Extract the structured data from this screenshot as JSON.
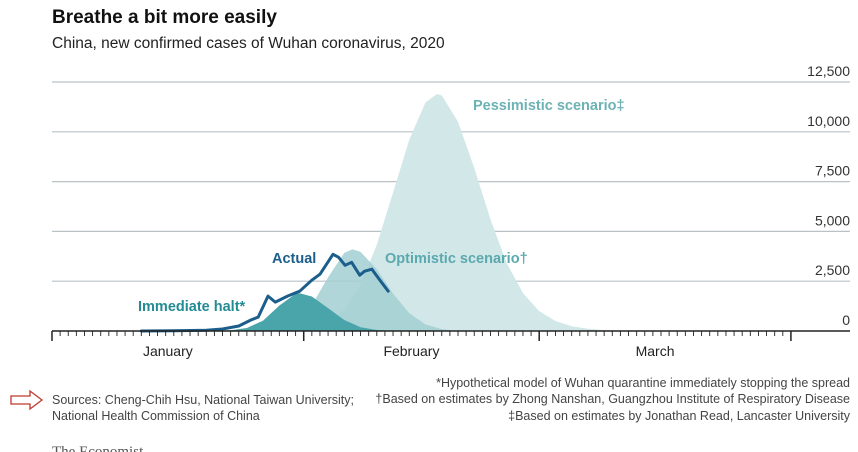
{
  "chart_data": {
    "type": "area",
    "title": "Breathe a bit more easily",
    "subtitle": "China, new confirmed cases of Wuhan coronavirus, 2020",
    "xlabel": "",
    "ylabel": "",
    "x_units": "days since 1 January 2020",
    "xlim": [
      0,
      91
    ],
    "ylim": [
      0,
      12500
    ],
    "yticks": [
      0,
      2500,
      5000,
      7500,
      10000,
      12500
    ],
    "ytick_labels": [
      "0",
      "2,500",
      "5,000",
      "7,500",
      "10,000",
      "12,500"
    ],
    "months": [
      {
        "label": "January",
        "start": 0,
        "end": 31
      },
      {
        "label": "February",
        "start": 31,
        "end": 60
      },
      {
        "label": "March",
        "start": 60,
        "end": 91
      }
    ],
    "grid": true,
    "series": [
      {
        "name": "Pessimistic scenario",
        "label": "Pessimistic scenario‡",
        "kind": "area",
        "color": "#d2e7e8",
        "points": [
          [
            26,
            0
          ],
          [
            30,
            44
          ],
          [
            32,
            149
          ],
          [
            34,
            431
          ],
          [
            36,
            1080
          ],
          [
            38,
            2325
          ],
          [
            40,
            4330
          ],
          [
            42,
            6940
          ],
          [
            44,
            9610
          ],
          [
            46,
            11470
          ],
          [
            47.4,
            11900
          ],
          [
            48,
            11820
          ],
          [
            50,
            10500
          ],
          [
            52,
            8200
          ],
          [
            54,
            5600
          ],
          [
            56,
            3400
          ],
          [
            58,
            1900
          ],
          [
            60,
            1000
          ],
          [
            62,
            500
          ],
          [
            64,
            240
          ],
          [
            66,
            110
          ],
          [
            68,
            50
          ],
          [
            72,
            10
          ],
          [
            76,
            0
          ]
        ]
      },
      {
        "name": "Optimistic scenario",
        "label": "Optimistic scenario†",
        "kind": "area",
        "color": "#a3cfd2",
        "points": [
          [
            26,
            0
          ],
          [
            28,
            100
          ],
          [
            30,
            430
          ],
          [
            32,
            1290
          ],
          [
            34,
            2700
          ],
          [
            36,
            3920
          ],
          [
            37,
            4100
          ],
          [
            38,
            3970
          ],
          [
            40,
            3100
          ],
          [
            42,
            1880
          ],
          [
            44,
            890
          ],
          [
            46,
            330
          ],
          [
            48,
            94
          ],
          [
            50,
            0
          ]
        ]
      },
      {
        "name": "Immediate halt",
        "label": "Immediate halt*",
        "kind": "area",
        "color": "#4aa5ab",
        "points": [
          [
            11,
            0
          ],
          [
            16,
            5
          ],
          [
            20,
            15
          ],
          [
            22,
            40
          ],
          [
            24,
            150
          ],
          [
            26,
            520
          ],
          [
            28,
            1280
          ],
          [
            30,
            1870
          ],
          [
            30.5,
            1900
          ],
          [
            32,
            1730
          ],
          [
            34,
            1150
          ],
          [
            36,
            550
          ],
          [
            38,
            190
          ],
          [
            40,
            48
          ],
          [
            42,
            0
          ]
        ]
      },
      {
        "name": "Actual",
        "label": "Actual",
        "kind": "line",
        "color": "#1b5e8c",
        "points": [
          [
            11,
            0
          ],
          [
            15,
            10
          ],
          [
            19,
            40
          ],
          [
            21,
            100
          ],
          [
            23,
            250
          ],
          [
            24.5,
            550
          ],
          [
            25.4,
            700
          ],
          [
            26.6,
            1750
          ],
          [
            27.5,
            1450
          ],
          [
            29,
            1750
          ],
          [
            30.5,
            2000
          ],
          [
            32,
            2550
          ],
          [
            33,
            2850
          ],
          [
            34.6,
            3850
          ],
          [
            35.3,
            3700
          ],
          [
            36.1,
            3300
          ],
          [
            36.9,
            3450
          ],
          [
            37.9,
            2800
          ],
          [
            38.5,
            3000
          ],
          [
            39.4,
            3100
          ],
          [
            40.3,
            2600
          ],
          [
            41.4,
            2000
          ]
        ]
      }
    ],
    "label_colors": {
      "Pessimistic scenario": "#6db2b4",
      "Optimistic scenario": "#5aa9ae",
      "Immediate halt": "#238c93",
      "Actual": "#1b5e8c"
    }
  },
  "notes": {
    "sources_line1": "Sources: Cheng-Chih Hsu, National Taiwan University;",
    "sources_line2": "National Health Commission of China",
    "footnote1": "*Hypothetical model of Wuhan quarantine immediately stopping the spread",
    "footnote2": "†Based on estimates by Zhong Nanshan, Guangzhou Institute of Respiratory Disease",
    "footnote3": "‡Based on estimates by Jonathan Read, Lancaster University",
    "brand": "The Economist"
  }
}
